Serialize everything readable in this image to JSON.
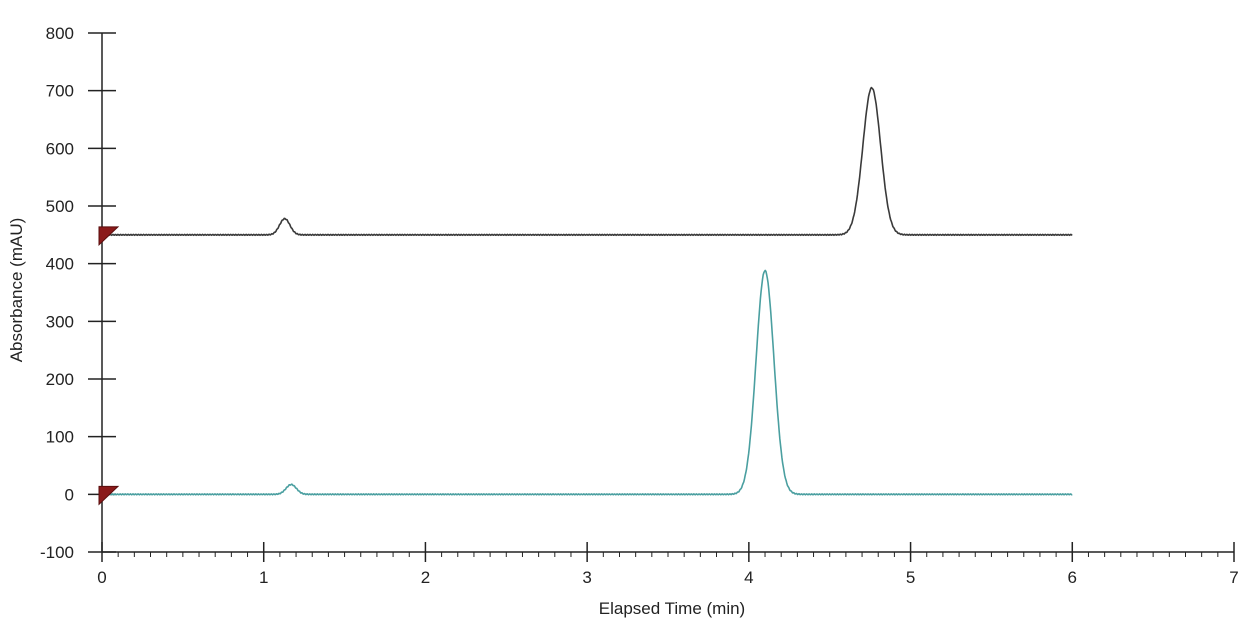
{
  "chart_data": {
    "type": "line",
    "xlabel": "Elapsed Time (min)",
    "ylabel": "Absorbance (mAU)",
    "xlim": [
      0,
      7
    ],
    "ylim": [
      -100,
      800
    ],
    "xticks": [
      0,
      1,
      2,
      3,
      4,
      5,
      6,
      7
    ],
    "yticks": [
      -100,
      0,
      100,
      200,
      300,
      400,
      500,
      600,
      700,
      800
    ],
    "grid": false,
    "legend": "none",
    "series": [
      {
        "color": "#3a3a3a",
        "baseline": 450,
        "x_range": [
          0,
          6
        ],
        "peaks": [
          {
            "time": 1.13,
            "height": 478
          },
          {
            "time": 4.76,
            "height": 705
          }
        ]
      },
      {
        "color": "#4a9fa0",
        "baseline": 0,
        "x_range": [
          0,
          6
        ],
        "peaks": [
          {
            "time": 1.17,
            "height": 17
          },
          {
            "time": 4.1,
            "height": 388
          }
        ]
      }
    ],
    "markers": [
      {
        "x": 0,
        "y": 450,
        "color": "#8b1a1a"
      },
      {
        "x": 0,
        "y": 0,
        "color": "#8b1a1a"
      }
    ]
  }
}
